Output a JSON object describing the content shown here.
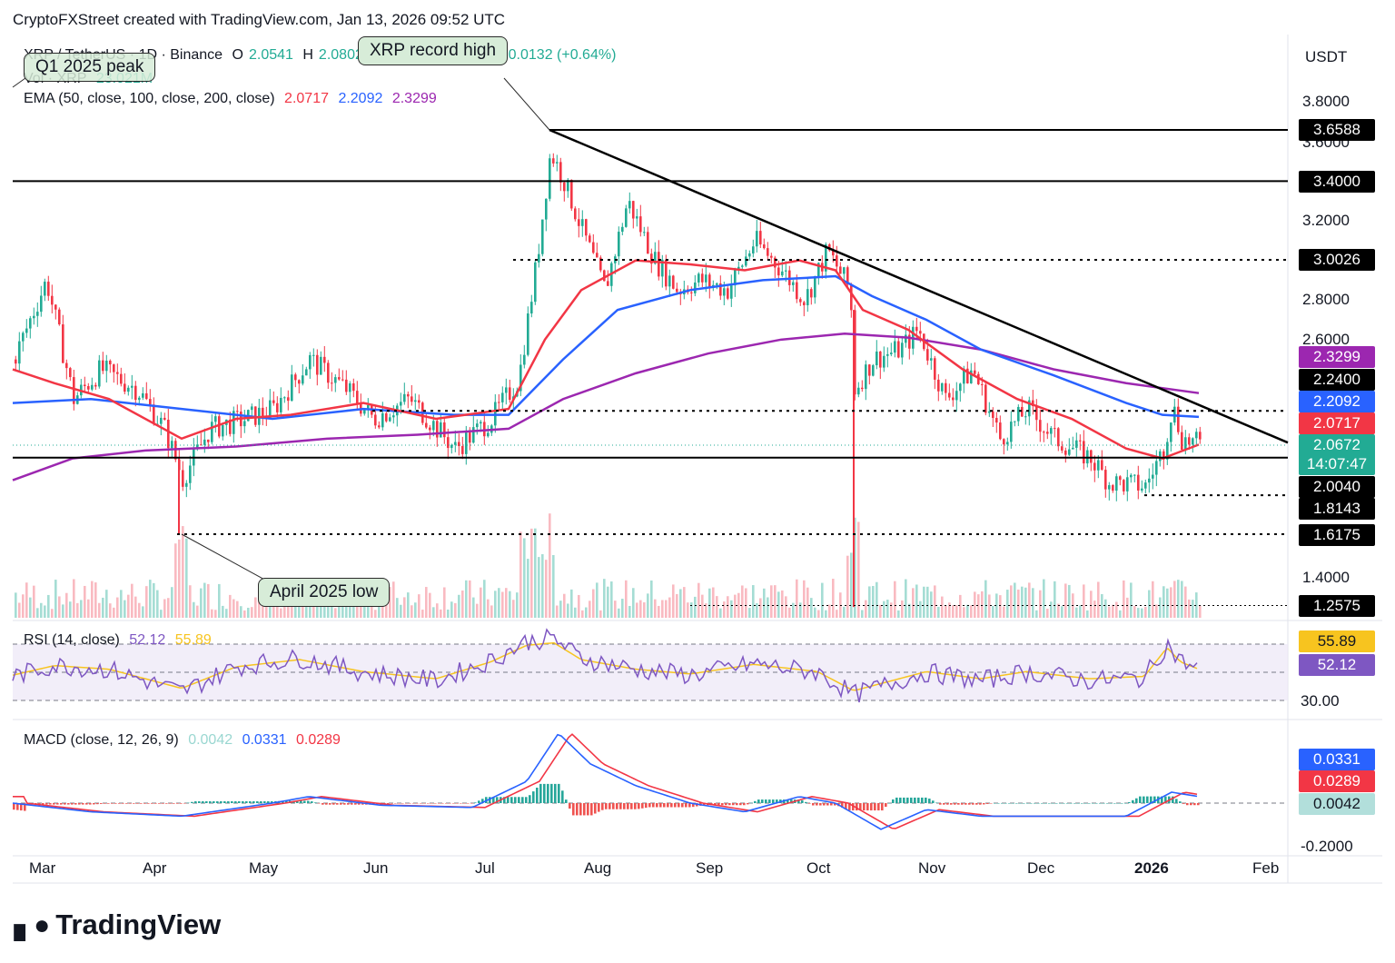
{
  "header": {
    "credit": "CryptoFXStreet created with TradingView.com, Jan 13, 2026 09:52 UTC"
  },
  "legend": {
    "symbol": "XRP / TetherUS · 1D · Binance",
    "o_label": "O",
    "o_val": "2.0541",
    "h_label": "H",
    "h_val": "2.0802",
    "change": "+0.0132 (+0.64%)",
    "vol": "Vol · XRP",
    "vol_val": "23.021M",
    "ema": "EMA (50, close, 100, close, 200, close)",
    "ema50": "2.0717",
    "ema100": "2.2092",
    "ema200": "2.3299"
  },
  "rsi_legend": {
    "title": "RSI (14, close)",
    "rsi": "52.12",
    "ma": "55.89"
  },
  "macd_legend": {
    "title": "MACD (close, 12, 26, 9)",
    "hist": "0.0042",
    "macd": "0.0331",
    "signal": "0.0289"
  },
  "currency": "USDT",
  "annotations": {
    "record_high": "XRP record high",
    "q1_peak": "Q1 2025 peak",
    "april_low": "April 2025 low"
  },
  "price_axis": [
    "3.8000",
    "3.6000",
    "3.2000",
    "2.8000",
    "2.6000",
    "1.4000"
  ],
  "price_labels": [
    {
      "text": "3.6588",
      "kind": "black"
    },
    {
      "text": "3.4000",
      "kind": "black"
    },
    {
      "text": "3.0026",
      "kind": "black"
    },
    {
      "text": "2.3299",
      "kind": "purple"
    },
    {
      "text": "2.2400",
      "kind": "black"
    },
    {
      "text": "2.2092",
      "kind": "blue"
    },
    {
      "text": "2.0717",
      "kind": "red"
    },
    {
      "text": "2.0672",
      "kind": "green"
    },
    {
      "text": "14:07:47",
      "kind": "green"
    },
    {
      "text": "2.0040",
      "kind": "black"
    },
    {
      "text": "1.8143",
      "kind": "black"
    },
    {
      "text": "1.6175",
      "kind": "black"
    },
    {
      "text": "1.2575",
      "kind": "black"
    }
  ],
  "rsi_axis": {
    "top": "70.00",
    "bottom": "30.00",
    "ma_label": "55.89",
    "rsi_label": "52.12"
  },
  "macd_axis": {
    "macd": "0.0331",
    "signal": "0.0289",
    "hist": "0.0042",
    "bottom": "-0.2000"
  },
  "time_axis": [
    "Mar",
    "Apr",
    "May",
    "Jun",
    "Jul",
    "Aug",
    "Sep",
    "Oct",
    "Nov",
    "Dec",
    "2026",
    "Feb"
  ],
  "brand": "TradingView",
  "colors": {
    "up": "#22ab94",
    "down": "#f23645",
    "ema50": "#f23645",
    "ema100": "#2962ff",
    "ema200": "#9c27b0"
  },
  "chart_data": {
    "type": "line",
    "title": "XRP / TetherUS · 1D · Binance",
    "ylabel": "USDT",
    "ylim": [
      1.25,
      3.85
    ],
    "x": [
      "Mar",
      "Apr",
      "May",
      "Jun",
      "Jul",
      "Aug",
      "Sep",
      "Oct",
      "Nov",
      "Dec",
      "2026",
      "Feb"
    ],
    "series": [
      {
        "name": "Close (approx)",
        "values": [
          2.45,
          2.1,
          2.2,
          2.18,
          2.3,
          3.2,
          2.85,
          2.95,
          2.4,
          2.15,
          1.9,
          2.07
        ]
      },
      {
        "name": "EMA 50",
        "values": [
          2.35,
          2.2,
          2.22,
          2.2,
          2.25,
          2.95,
          2.9,
          2.85,
          2.55,
          2.25,
          2.0,
          2.07
        ]
      },
      {
        "name": "EMA 100",
        "values": [
          2.3,
          2.28,
          2.2,
          2.22,
          2.2,
          2.65,
          2.82,
          2.85,
          2.65,
          2.4,
          2.25,
          2.21
        ]
      },
      {
        "name": "EMA 200",
        "values": [
          1.9,
          2.0,
          2.05,
          2.1,
          2.12,
          2.4,
          2.52,
          2.63,
          2.58,
          2.45,
          2.35,
          2.33
        ]
      }
    ],
    "levels": [
      3.6588,
      3.4,
      3.0026,
      2.24,
      2.004,
      1.8143,
      1.6175,
      1.2575
    ],
    "trendline": {
      "from": 3.6588,
      "to": 2.08
    }
  }
}
